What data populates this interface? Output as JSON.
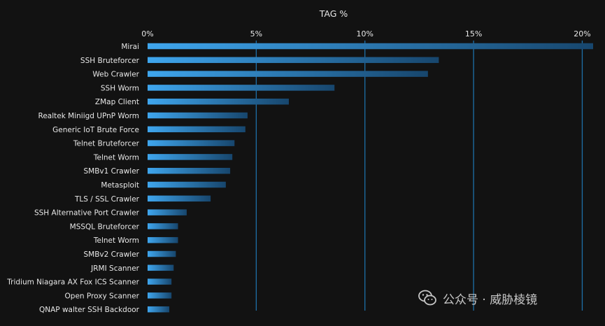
{
  "chart_data": {
    "type": "bar",
    "orientation": "horizontal",
    "title": "TAG %",
    "xlim": [
      0,
      20.5
    ],
    "x_ticks": [
      "0%",
      "5%",
      "10%",
      "15%",
      "20%"
    ],
    "x_tick_values": [
      0,
      5,
      10,
      15,
      20
    ],
    "categories": [
      "Mirai",
      "SSH Bruteforcer",
      "Web Crawler",
      "SSH Worm",
      "ZMap Client",
      "Realtek Miniigd UPnP Worm",
      "Generic IoT Brute Force",
      "Telnet Bruteforcer",
      "Telnet Worm",
      "SMBv1 Crawler",
      "Metasploit",
      "TLS / SSL Crawler",
      "SSH Alternative Port Crawler",
      "MSSQL Bruteforcer",
      "Telnet Worm",
      "SMBv2 Crawler",
      "JRMI Scanner",
      "Tridium Niagara AX Fox ICS Scanner",
      "Open Proxy Scanner",
      "QNAP walter SSH Backdoor"
    ],
    "values": [
      20.5,
      13.4,
      12.9,
      8.6,
      6.5,
      4.6,
      4.5,
      4.0,
      3.9,
      3.8,
      3.6,
      2.9,
      1.8,
      1.4,
      1.4,
      1.3,
      1.2,
      1.1,
      1.1,
      1.0
    ],
    "grid": "vertical",
    "legend": "none",
    "colors": {
      "background": "#121212",
      "bar_start": "#3fa6ee",
      "bar_end": "#17466d",
      "gridline": "#1e6fa8",
      "text": "#e8e8e8"
    }
  },
  "watermark": {
    "text": "公众号 · 威胁棱镜",
    "icon": "wechat-icon"
  }
}
